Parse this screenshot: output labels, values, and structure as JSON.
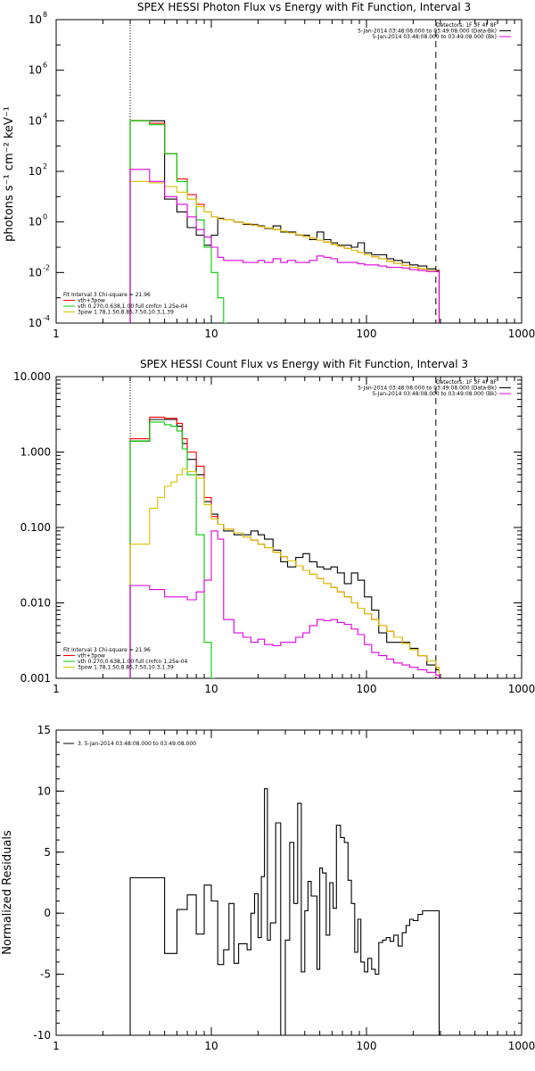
{
  "colors": {
    "black": "#000000",
    "red": "#ff0000",
    "green": "#00cc00",
    "yellow": "#d4c400",
    "magenta": "#dd00dd"
  },
  "chart_data": [
    {
      "type": "line",
      "title": "SPEX HESSI Photon Flux vs Energy with Fit Function, Interval 3",
      "ylabel": "photons s⁻¹ cm⁻² keV⁻¹",
      "xlabel": "",
      "xscale": "log",
      "yscale": "log",
      "xlim": [
        1,
        1000
      ],
      "ylim": [
        0.0001,
        100000000
      ],
      "xticks": [
        1,
        10,
        100,
        1000
      ],
      "xtick_labels": [
        "1",
        "10",
        "100",
        "1000"
      ],
      "yticks": [
        0.0001,
        0.01,
        1,
        100,
        10000,
        1000000,
        100000000
      ],
      "ytick_labels": [
        "10",
        "10",
        "10",
        "10",
        "10",
        "10",
        "10"
      ],
      "ytick_exps": [
        "-4",
        "-2",
        "0",
        "2",
        "4",
        "6",
        "8"
      ],
      "vlines": [
        {
          "x": 3,
          "style": "dotted"
        },
        {
          "x": 280,
          "style": "dashed"
        }
      ],
      "legend_topright": [
        "Detectors: 1F 3F 4F 8F",
        "5-Jan-2014 03:48:08.000 to 03:49:08.000 (Data-Bk)",
        "5-Jan-2014 03:48:08.000 to 03:49:08.000 (Bk)"
      ],
      "legend_bottomleft": [
        "Fit Interval 3   Chi-square = 21.96",
        "vth+3pow",
        "vth 0.270,0.638,1.00  full cmfcn 1.25e-04",
        "3pow 1.78,1.50,8.85,7.50,10.3,1.39"
      ],
      "series": [
        {
          "name": "Data-Bk",
          "color": "#000000",
          "step": true,
          "x": [
            3,
            4,
            5,
            6,
            7,
            8,
            9,
            10,
            11,
            12,
            14,
            16,
            18,
            20,
            22,
            25,
            28,
            31,
            35,
            39,
            43,
            48,
            53,
            59,
            65,
            72,
            80,
            88,
            97,
            108,
            120,
            135,
            150,
            170,
            190,
            215,
            245,
            280
          ],
          "y": [
            10000,
            10000,
            8,
            2.5,
            0.6,
            0.3,
            0.12,
            0.3,
            1.4,
            1.2,
            1.0,
            0.8,
            0.8,
            0.7,
            0.55,
            0.7,
            0.4,
            0.4,
            0.3,
            0.3,
            0.2,
            0.4,
            0.2,
            0.15,
            0.12,
            0.12,
            0.1,
            0.15,
            0.06,
            0.05,
            0.05,
            0.035,
            0.03,
            0.025,
            0.02,
            0.018,
            0.014,
            0.012
          ]
        },
        {
          "name": "vth+3pow",
          "color": "#ff0000",
          "step": true,
          "x": [
            3,
            4,
            5,
            6,
            7,
            8,
            9,
            10,
            11,
            12,
            14,
            16,
            18,
            20,
            22,
            25,
            28,
            31,
            35,
            39,
            43,
            48,
            53,
            59,
            65,
            72,
            80,
            88,
            97,
            108,
            120,
            135,
            150,
            170,
            190,
            215,
            245,
            280
          ],
          "y": [
            10000,
            8000,
            500,
            50,
            12,
            5,
            2.5,
            1.6,
            1.3,
            1.2,
            1.0,
            0.85,
            0.75,
            0.66,
            0.58,
            0.5,
            0.43,
            0.37,
            0.31,
            0.27,
            0.23,
            0.19,
            0.16,
            0.13,
            0.11,
            0.09,
            0.075,
            0.062,
            0.05,
            0.042,
            0.035,
            0.028,
            0.023,
            0.019,
            0.016,
            0.014,
            0.012,
            0.011
          ]
        },
        {
          "name": "vth",
          "color": "#00cc00",
          "step": true,
          "x": [
            3,
            4,
            5,
            6,
            7,
            8,
            9,
            10,
            11,
            12
          ],
          "y": [
            10000,
            7000,
            500,
            40,
            8,
            1.2,
            0.1,
            0.01,
            0.001,
            5e-05
          ]
        },
        {
          "name": "3pow",
          "color": "#d4c400",
          "step": true,
          "x": [
            3,
            4,
            5,
            6,
            7,
            8,
            9,
            10,
            11,
            12,
            14,
            16,
            18,
            20,
            22,
            25,
            28,
            31,
            35,
            39,
            43,
            48,
            53,
            59,
            65,
            72,
            80,
            88,
            97,
            108,
            120,
            135,
            150,
            170,
            190,
            215,
            245,
            280
          ],
          "y": [
            40,
            35,
            25,
            15,
            8,
            4,
            2.5,
            1.6,
            1.3,
            1.2,
            1.0,
            0.85,
            0.75,
            0.66,
            0.58,
            0.5,
            0.43,
            0.37,
            0.31,
            0.27,
            0.23,
            0.19,
            0.16,
            0.13,
            0.11,
            0.09,
            0.075,
            0.062,
            0.05,
            0.042,
            0.035,
            0.028,
            0.023,
            0.019,
            0.016,
            0.014,
            0.012,
            0.011
          ]
        },
        {
          "name": "Bk",
          "color": "#dd00dd",
          "step": true,
          "x": [
            3,
            4,
            5,
            6,
            7,
            8,
            9,
            10,
            11,
            12,
            14,
            16,
            18,
            20,
            22,
            25,
            28,
            31,
            35,
            39,
            43,
            48,
            53,
            59,
            65,
            72,
            80,
            88,
            97,
            108,
            120,
            135,
            150,
            170,
            190,
            215,
            245,
            280
          ],
          "y": [
            120,
            40,
            10,
            5,
            1.6,
            0.5,
            0.25,
            0.1,
            0.04,
            0.03,
            0.03,
            0.025,
            0.025,
            0.03,
            0.025,
            0.035,
            0.025,
            0.03,
            0.025,
            0.025,
            0.03,
            0.045,
            0.04,
            0.035,
            0.025,
            0.025,
            0.025,
            0.022,
            0.02,
            0.02,
            0.018,
            0.016,
            0.016,
            0.015,
            0.013,
            0.012,
            0.011,
            0.011
          ]
        }
      ]
    },
    {
      "type": "line",
      "title": "SPEX HESSI Count Flux vs Energy with Fit Function, Interval 3",
      "ylabel": "",
      "xlabel": "",
      "xscale": "log",
      "yscale": "log",
      "xlim": [
        1,
        1000
      ],
      "ylim": [
        0.001,
        10
      ],
      "xticks": [
        1,
        10,
        100,
        1000
      ],
      "xtick_labels": [
        "1",
        "10",
        "100",
        "1000"
      ],
      "yticks": [
        0.001,
        0.01,
        0.1,
        1,
        10
      ],
      "ytick_labels": [
        "0.001",
        "0.010",
        "0.100",
        "1.000",
        "10.000"
      ],
      "vlines": [
        {
          "x": 3,
          "style": "dotted"
        },
        {
          "x": 280,
          "style": "dashed"
        }
      ],
      "legend_topright": [
        "Detectors: 1F 3F 4F 8F",
        "5-Jan-2014 03:48:08.000 to 03:49:08.000 (Data-Bk)",
        "5-Jan-2014 03:48:08.000 to 03:49:08.000 (Bk)"
      ],
      "legend_bottomleft": [
        "Fit Interval 3   Chi-square = 21.96",
        "vth+3pow",
        "vth 0.270,0.638,1.00  full cmfcn 1.25e-04",
        "3pow 1.78,1.50,8.85,7.50,10.3,1.39"
      ],
      "series": [
        {
          "name": "Data-Bk",
          "color": "#000000",
          "step": true,
          "x": [
            3,
            3.5,
            4,
            4.5,
            5,
            5.5,
            6,
            6.5,
            7,
            8,
            9,
            10,
            11,
            12,
            14,
            16,
            18,
            20,
            22,
            25,
            28,
            31,
            35,
            39,
            43,
            48,
            53,
            59,
            65,
            72,
            80,
            88,
            97,
            108,
            120,
            135,
            150,
            170,
            190,
            215,
            245,
            280
          ],
          "y": [
            1.4,
            1.4,
            2.7,
            2.7,
            2.7,
            2.7,
            2.2,
            1.3,
            0.8,
            0.5,
            0.22,
            0.15,
            0.11,
            0.09,
            0.08,
            0.08,
            0.09,
            0.08,
            0.07,
            0.05,
            0.035,
            0.03,
            0.04,
            0.045,
            0.035,
            0.03,
            0.028,
            0.03,
            0.025,
            0.018,
            0.025,
            0.02,
            0.012,
            0.008,
            0.004,
            0.003,
            0.003,
            0.003,
            0.0025,
            0.002,
            0.0015,
            0.0013
          ]
        },
        {
          "name": "vth+3pow",
          "color": "#ff0000",
          "step": true,
          "x": [
            3,
            3.5,
            4,
            4.5,
            5,
            5.5,
            6,
            6.5,
            7,
            8,
            9,
            10,
            11,
            12,
            14,
            16,
            18,
            20,
            22,
            25,
            28,
            31,
            35,
            39,
            43,
            48,
            53,
            59,
            65,
            72,
            80,
            88,
            97,
            108,
            120,
            135,
            150,
            170,
            190,
            215,
            245,
            280
          ],
          "y": [
            1.5,
            1.5,
            2.9,
            2.9,
            2.8,
            2.8,
            2.4,
            1.5,
            1.0,
            0.65,
            0.25,
            0.14,
            0.11,
            0.095,
            0.085,
            0.075,
            0.068,
            0.06,
            0.054,
            0.047,
            0.041,
            0.036,
            0.031,
            0.027,
            0.024,
            0.021,
            0.018,
            0.016,
            0.014,
            0.012,
            0.01,
            0.0085,
            0.0072,
            0.006,
            0.005,
            0.0042,
            0.0035,
            0.0029,
            0.0024,
            0.002,
            0.0017,
            0.0014
          ]
        },
        {
          "name": "vth",
          "color": "#00cc00",
          "step": true,
          "x": [
            3,
            3.5,
            4,
            4.5,
            5,
            5.5,
            6,
            6.5,
            7,
            8,
            9,
            10
          ],
          "y": [
            1.4,
            1.4,
            2.5,
            2.5,
            2.3,
            2.2,
            1.9,
            1.1,
            0.5,
            0.08,
            0.003,
            0.0005
          ]
        },
        {
          "name": "3pow",
          "color": "#d4c400",
          "step": true,
          "x": [
            3,
            3.5,
            4,
            4.5,
            5,
            5.5,
            6,
            6.5,
            7,
            8,
            9,
            10,
            11,
            12,
            14,
            16,
            18,
            20,
            22,
            25,
            28,
            31,
            35,
            39,
            43,
            48,
            53,
            59,
            65,
            72,
            80,
            88,
            97,
            108,
            120,
            135,
            150,
            170,
            190,
            215,
            245,
            280
          ],
          "y": [
            0.06,
            0.06,
            0.18,
            0.25,
            0.35,
            0.4,
            0.5,
            0.6,
            0.55,
            0.45,
            0.2,
            0.13,
            0.11,
            0.095,
            0.085,
            0.075,
            0.068,
            0.06,
            0.054,
            0.047,
            0.041,
            0.036,
            0.031,
            0.027,
            0.024,
            0.021,
            0.018,
            0.016,
            0.014,
            0.012,
            0.01,
            0.0085,
            0.0072,
            0.006,
            0.005,
            0.0042,
            0.0035,
            0.0029,
            0.0024,
            0.002,
            0.0017,
            0.0014
          ]
        },
        {
          "name": "Bk",
          "color": "#dd00dd",
          "step": true,
          "x": [
            3,
            4,
            5,
            6,
            7,
            8,
            9,
            10,
            11,
            12,
            14,
            16,
            18,
            20,
            22,
            25,
            28,
            31,
            35,
            39,
            43,
            48,
            53,
            59,
            65,
            72,
            80,
            88,
            97,
            108,
            120,
            135,
            150,
            170,
            190,
            215,
            245,
            280
          ],
          "y": [
            0.017,
            0.015,
            0.012,
            0.012,
            0.011,
            0.014,
            0.02,
            0.09,
            0.07,
            0.006,
            0.004,
            0.0035,
            0.003,
            0.0033,
            0.0028,
            0.0027,
            0.003,
            0.003,
            0.0035,
            0.004,
            0.005,
            0.006,
            0.0058,
            0.006,
            0.0055,
            0.0052,
            0.0045,
            0.0038,
            0.0028,
            0.0022,
            0.002,
            0.0018,
            0.0016,
            0.0015,
            0.0014,
            0.0013,
            0.0012,
            0.0011
          ]
        }
      ]
    },
    {
      "type": "line",
      "title": "",
      "ylabel": "Normalized Residuals",
      "xlabel": "",
      "xscale": "log",
      "yscale": "linear",
      "xlim": [
        1,
        1000
      ],
      "ylim": [
        -10,
        15
      ],
      "xticks": [
        1,
        10,
        100,
        1000
      ],
      "xtick_labels": [
        "1",
        "10",
        "100",
        "1000"
      ],
      "yticks": [
        -10,
        -5,
        0,
        5,
        10,
        15
      ],
      "ytick_labels": [
        "-10",
        "-5",
        "0",
        "5",
        "10",
        "15"
      ],
      "legend_topleft": [
        "3.  5-Jan-2014 03:48:08.000 to 03:49:08.000"
      ],
      "series": [
        {
          "name": "",
          "color": "#000000",
          "step": true,
          "x": [
            3,
            4,
            5,
            5.5,
            6,
            6.5,
            7,
            7.5,
            8,
            9,
            10,
            11,
            12,
            13,
            14,
            15,
            16,
            17,
            18,
            19,
            20,
            21,
            22,
            23,
            24,
            26,
            28,
            30,
            32,
            34,
            36,
            38,
            40,
            42,
            44,
            46,
            48,
            50,
            52,
            55,
            58,
            61,
            64,
            68,
            72,
            76,
            80,
            84,
            88,
            92,
            97,
            102,
            108,
            114,
            120,
            127,
            134,
            142,
            150,
            160,
            170,
            180,
            190,
            200,
            215,
            230,
            250,
            280
          ],
          "y": [
            2.9,
            2.9,
            -3.3,
            -3.3,
            0.3,
            0.3,
            1.5,
            1.5,
            -1.7,
            2.3,
            1.0,
            -4.2,
            -3.0,
            0.8,
            -4.1,
            -2.5,
            -2.5,
            -3.0,
            0,
            1.6,
            -2.0,
            3.0,
            10.2,
            -2.2,
            -0.8,
            7.4,
            -10.5,
            -2.2,
            5.8,
            0.8,
            9.0,
            -4.8,
            0.2,
            2.6,
            1.4,
            1.4,
            -4.6,
            3.7,
            3.3,
            -1.8,
            2.5,
            0.4,
            7.2,
            6.2,
            5.8,
            2.7,
            0.8,
            -3.2,
            -0.5,
            -4.0,
            -4.8,
            -3.7,
            -4.6,
            -5.0,
            -2.4,
            -2.2,
            -2.0,
            -2.3,
            -1.8,
            -2.7,
            -1.6,
            -1.0,
            -0.5,
            -0.6,
            -0.1,
            0.2,
            0.2,
            0.2
          ]
        }
      ]
    }
  ]
}
